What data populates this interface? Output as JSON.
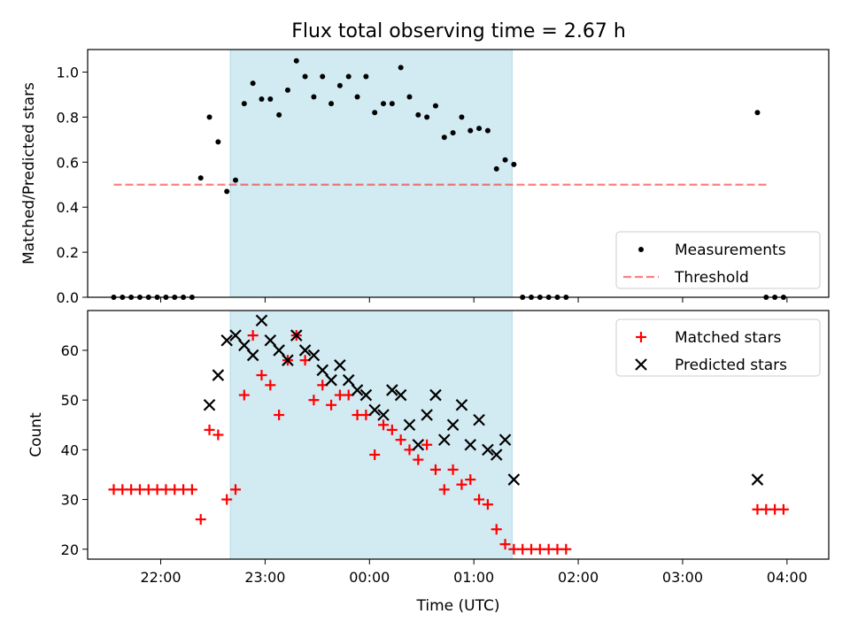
{
  "title": "Flux total observing time = 2.67 h",
  "colors": {
    "span": "#add8e6",
    "measurement": "#000000",
    "threshold": "#ff0000",
    "matched": "#ff0000",
    "predicted": "#000000"
  },
  "chart_data": [
    {
      "type": "scatter",
      "xlabel": "",
      "ylabel": "Matched/Predicted stars",
      "x_is_time_hours": true,
      "xlim": [
        21.3,
        4.4
      ],
      "ylim": [
        0,
        1.1
      ],
      "yticks": [
        0.0,
        0.2,
        0.4,
        0.6,
        0.8,
        1.0
      ],
      "ytick_labels": [
        "0.0",
        "0.2",
        "0.4",
        "0.6",
        "0.8",
        "1.0"
      ],
      "shaded_span": [
        "22:40",
        "01:22"
      ],
      "legend": {
        "placement": "lower-right",
        "entries": [
          "Measurements",
          "Threshold"
        ]
      },
      "threshold": {
        "name": "Threshold",
        "y": 0.5,
        "x_start": "21:33",
        "x_end": "03:50"
      },
      "series": [
        {
          "name": "Measurements",
          "x": [
            "21:33",
            "21:38",
            "21:43",
            "21:48",
            "21:53",
            "21:58",
            "22:03",
            "22:08",
            "22:13",
            "22:18",
            "22:23",
            "22:28",
            "22:33",
            "22:38",
            "22:43",
            "22:48",
            "22:53",
            "22:58",
            "23:03",
            "23:08",
            "23:13",
            "23:18",
            "23:23",
            "23:28",
            "23:33",
            "23:38",
            "23:43",
            "23:48",
            "23:53",
            "23:58",
            "00:03",
            "00:08",
            "00:13",
            "00:18",
            "00:23",
            "00:28",
            "00:33",
            "00:38",
            "00:43",
            "00:48",
            "00:53",
            "00:58",
            "01:03",
            "01:08",
            "01:13",
            "01:18",
            "01:23",
            "01:28",
            "01:33",
            "01:38",
            "01:43",
            "01:48",
            "01:53",
            "03:43",
            "03:48",
            "03:53",
            "03:58"
          ],
          "y": [
            0,
            0,
            0,
            0,
            0,
            0,
            0,
            0,
            0,
            0,
            0.53,
            0.8,
            0.69,
            0.47,
            0.52,
            0.86,
            0.95,
            0.88,
            0.88,
            0.81,
            0.92,
            1.05,
            0.98,
            0.89,
            0.98,
            0.86,
            0.94,
            0.98,
            0.89,
            0.98,
            0.82,
            0.86,
            0.86,
            1.02,
            0.89,
            0.81,
            0.8,
            0.85,
            0.71,
            0.73,
            0.8,
            0.74,
            0.75,
            0.74,
            0.57,
            0.61,
            0.59,
            0,
            0,
            0,
            0,
            0,
            0,
            0.82,
            0,
            0,
            0
          ]
        }
      ]
    },
    {
      "type": "scatter",
      "xlabel": "Time (UTC)",
      "ylabel": "Count",
      "x_is_time_hours": true,
      "xlim": [
        21.3,
        4.4
      ],
      "ylim": [
        18,
        68
      ],
      "yticks": [
        20,
        30,
        40,
        50,
        60
      ],
      "ytick_labels": [
        "20",
        "30",
        "40",
        "50",
        "60"
      ],
      "xticks": [
        "22:00",
        "23:00",
        "00:00",
        "01:00",
        "02:00",
        "03:00",
        "04:00"
      ],
      "shaded_span": [
        "22:40",
        "01:22"
      ],
      "legend": {
        "placement": "upper-right",
        "entries": [
          "Matched stars",
          "Predicted stars"
        ]
      },
      "series": [
        {
          "name": "Matched stars",
          "marker": "plus",
          "x": [
            "21:33",
            "21:38",
            "21:43",
            "21:48",
            "21:53",
            "21:58",
            "22:03",
            "22:08",
            "22:13",
            "22:18",
            "22:23",
            "22:28",
            "22:33",
            "22:38",
            "22:43",
            "22:48",
            "22:53",
            "22:58",
            "23:03",
            "23:08",
            "23:13",
            "23:18",
            "23:23",
            "23:28",
            "23:33",
            "23:38",
            "23:43",
            "23:48",
            "23:53",
            "23:58",
            "00:03",
            "00:08",
            "00:13",
            "00:18",
            "00:23",
            "00:28",
            "00:33",
            "00:38",
            "00:43",
            "00:48",
            "00:53",
            "00:58",
            "01:03",
            "01:08",
            "01:13",
            "01:18",
            "01:23",
            "01:28",
            "01:33",
            "01:38",
            "01:43",
            "01:48",
            "01:53",
            "03:43",
            "03:48",
            "03:53",
            "03:58"
          ],
          "y": [
            32,
            32,
            32,
            32,
            32,
            32,
            32,
            32,
            32,
            32,
            26,
            44,
            43,
            30,
            32,
            51,
            63,
            55,
            53,
            47,
            58,
            63,
            58,
            50,
            53,
            49,
            51,
            51,
            47,
            47,
            39,
            45,
            44,
            42,
            40,
            38,
            41,
            36,
            32,
            36,
            33,
            34,
            30,
            29,
            24,
            21,
            20,
            20,
            20,
            20,
            20,
            20,
            20,
            28,
            28,
            28,
            28
          ]
        },
        {
          "name": "Predicted stars",
          "marker": "x",
          "x": [
            "22:28",
            "22:33",
            "22:38",
            "22:43",
            "22:48",
            "22:53",
            "22:58",
            "23:03",
            "23:08",
            "23:13",
            "23:18",
            "23:23",
            "23:28",
            "23:33",
            "23:38",
            "23:43",
            "23:48",
            "23:53",
            "23:58",
            "00:03",
            "00:08",
            "00:13",
            "00:18",
            "00:23",
            "00:28",
            "00:33",
            "00:38",
            "00:43",
            "00:48",
            "00:53",
            "00:58",
            "01:03",
            "01:08",
            "01:13",
            "01:18",
            "01:23",
            "03:43"
          ],
          "y": [
            49,
            55,
            62,
            63,
            61,
            59,
            66,
            62,
            60,
            58,
            63,
            60,
            59,
            56,
            54,
            57,
            54,
            52,
            51,
            48,
            47,
            52,
            51,
            45,
            41,
            47,
            51,
            42,
            45,
            49,
            41,
            46,
            40,
            39,
            42,
            34,
            34
          ]
        }
      ]
    }
  ]
}
